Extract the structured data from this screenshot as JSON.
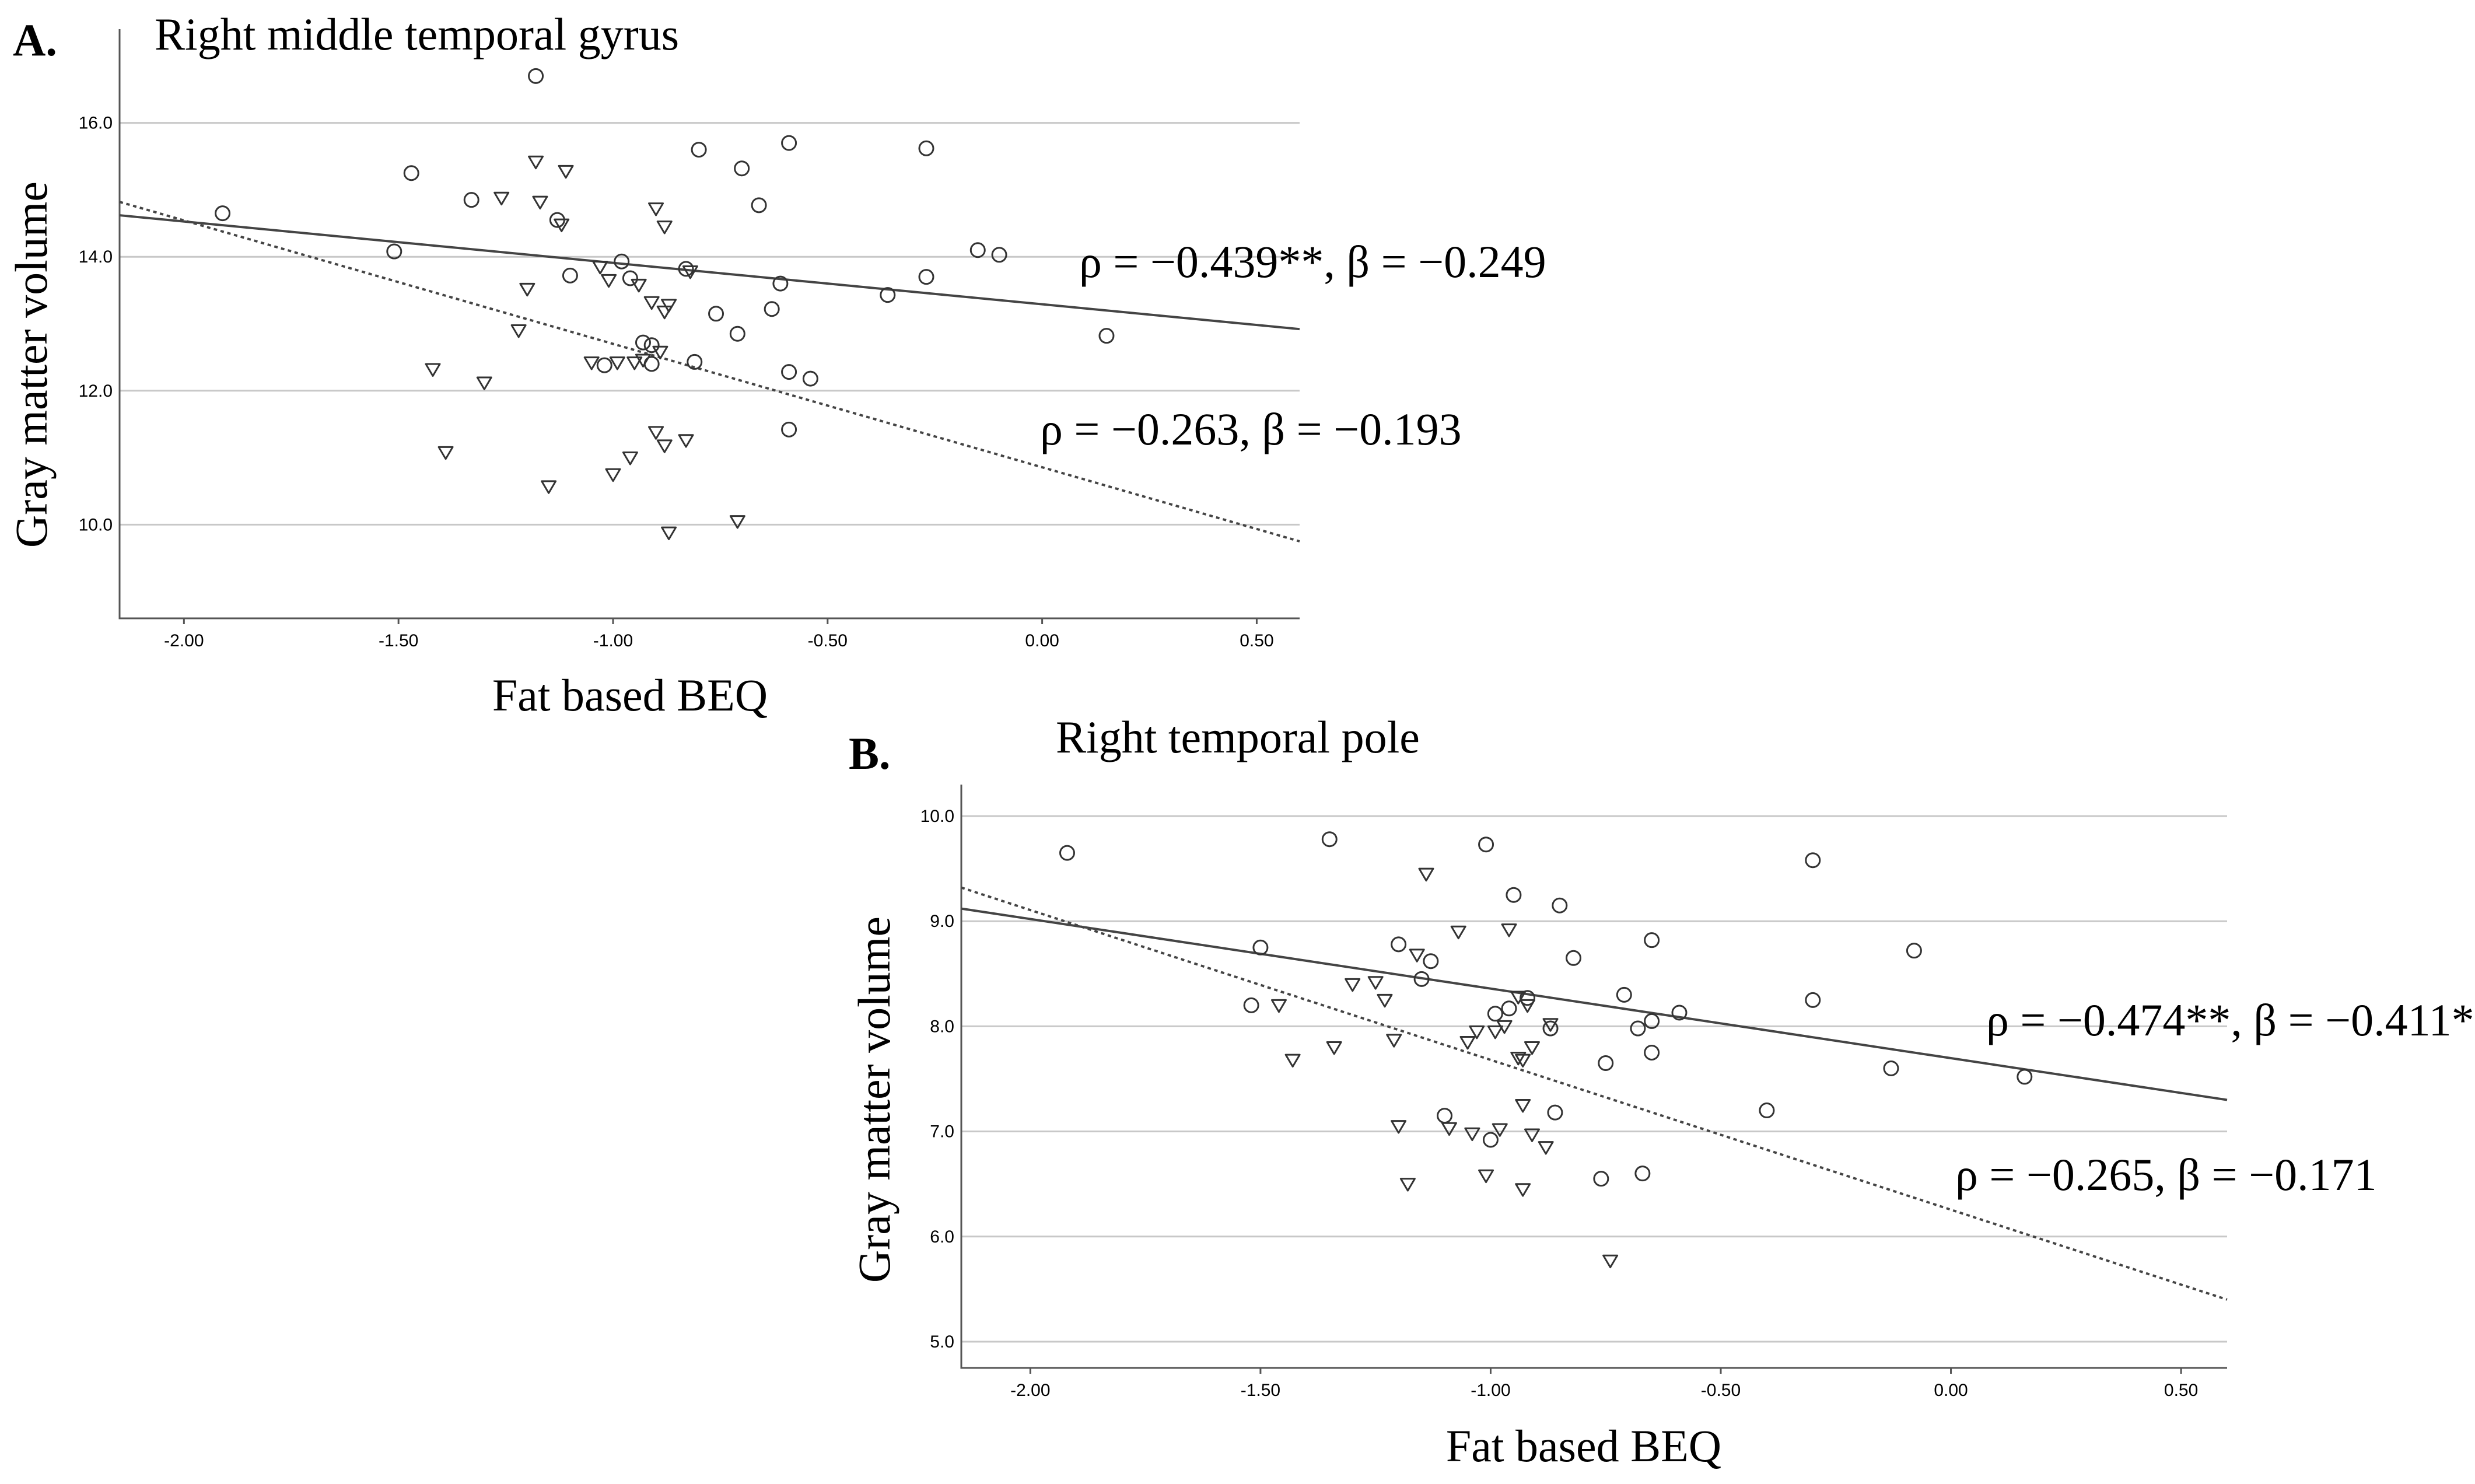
{
  "chart_data": [
    {
      "type": "scatter",
      "panel_label": "A.",
      "title": "Right middle temporal gyrus",
      "xlabel": "Fat based BEQ",
      "ylabel": "Gray matter volume",
      "xlim": [
        -2.15,
        0.6
      ],
      "ylim": [
        8.6,
        17.4
      ],
      "x_ticks": [
        -2.0,
        -1.5,
        -1.0,
        -0.5,
        0.0,
        0.5
      ],
      "x_tick_labels": [
        "-2.00",
        "-1.50",
        "-1.00",
        "-0.50",
        "0.00",
        "0.50"
      ],
      "y_ticks": [
        10.0,
        12.0,
        14.0,
        16.0
      ],
      "y_tick_labels": [
        "10.0",
        "12.0",
        "14.0",
        "16.0"
      ],
      "grid": "horizontal",
      "series": [
        {
          "name": "circles",
          "marker": "circle",
          "fit_line": {
            "style": "solid",
            "x": [
              -2.15,
              0.6
            ],
            "y": [
              14.62,
              12.92
            ]
          },
          "annotation": "ρ = −0.439**, β = −0.249",
          "points": [
            [
              -1.91,
              14.65
            ],
            [
              -1.47,
              15.25
            ],
            [
              -1.51,
              14.08
            ],
            [
              -1.33,
              14.85
            ],
            [
              -1.18,
              16.7
            ],
            [
              -1.13,
              14.55
            ],
            [
              -1.1,
              13.72
            ],
            [
              -1.02,
              12.38
            ],
            [
              -0.98,
              13.93
            ],
            [
              -0.96,
              13.68
            ],
            [
              -0.93,
              12.72
            ],
            [
              -0.91,
              12.68
            ],
            [
              -0.91,
              12.4
            ],
            [
              -0.83,
              13.82
            ],
            [
              -0.81,
              12.43
            ],
            [
              -0.8,
              15.6
            ],
            [
              -0.76,
              13.15
            ],
            [
              -0.71,
              12.85
            ],
            [
              -0.7,
              15.32
            ],
            [
              -0.66,
              14.77
            ],
            [
              -0.63,
              13.22
            ],
            [
              -0.61,
              13.6
            ],
            [
              -0.59,
              15.7
            ],
            [
              -0.59,
              12.28
            ],
            [
              -0.59,
              11.42
            ],
            [
              -0.54,
              12.18
            ],
            [
              -0.36,
              13.43
            ],
            [
              -0.27,
              15.62
            ],
            [
              -0.27,
              13.7
            ],
            [
              -0.15,
              14.1
            ],
            [
              -0.1,
              14.03
            ],
            [
              0.15,
              12.82
            ]
          ]
        },
        {
          "name": "triangles",
          "marker": "triangle",
          "fit_line": {
            "style": "dashed",
            "x": [
              -2.15,
              0.6
            ],
            "y": [
              14.82,
              9.75
            ]
          },
          "annotation": "ρ = −0.263, β = −0.193",
          "points": [
            [
              -1.42,
              12.32
            ],
            [
              -1.39,
              11.08
            ],
            [
              -1.3,
              12.12
            ],
            [
              -1.26,
              14.88
            ],
            [
              -1.22,
              12.9
            ],
            [
              -1.2,
              13.52
            ],
            [
              -1.18,
              15.42
            ],
            [
              -1.17,
              14.82
            ],
            [
              -1.15,
              10.57
            ],
            [
              -1.12,
              14.48
            ],
            [
              -1.11,
              15.28
            ],
            [
              -1.05,
              12.42
            ],
            [
              -1.03,
              13.85
            ],
            [
              -1.01,
              13.65
            ],
            [
              -1.0,
              10.75
            ],
            [
              -0.99,
              12.42
            ],
            [
              -0.96,
              11.0
            ],
            [
              -0.95,
              12.42
            ],
            [
              -0.94,
              13.58
            ],
            [
              -0.93,
              12.46
            ],
            [
              -0.91,
              13.32
            ],
            [
              -0.9,
              11.38
            ],
            [
              -0.9,
              14.72
            ],
            [
              -0.89,
              12.58
            ],
            [
              -0.88,
              13.18
            ],
            [
              -0.88,
              14.45
            ],
            [
              -0.88,
              11.18
            ],
            [
              -0.87,
              13.28
            ],
            [
              -0.87,
              9.88
            ],
            [
              -0.83,
              11.26
            ],
            [
              -0.82,
              13.78
            ],
            [
              -0.71,
              10.05
            ]
          ]
        }
      ]
    },
    {
      "type": "scatter",
      "panel_label": "B.",
      "title": "Right temporal pole",
      "xlabel": "Fat based BEQ",
      "ylabel": "Gray matter volume",
      "xlim": [
        -2.15,
        0.6
      ],
      "ylim": [
        4.75,
        10.3
      ],
      "x_ticks": [
        -2.0,
        -1.5,
        -1.0,
        -0.5,
        0.0,
        0.5
      ],
      "x_tick_labels": [
        "-2.00",
        "-1.50",
        "-1.00",
        "-0.50",
        "0.00",
        "0.50"
      ],
      "y_ticks": [
        5.0,
        6.0,
        7.0,
        8.0,
        9.0,
        10.0
      ],
      "y_tick_labels": [
        "5.0",
        "6.0",
        "7.0",
        "8.0",
        "9.0",
        "10.0"
      ],
      "grid": "horizontal",
      "series": [
        {
          "name": "circles",
          "marker": "circle",
          "fit_line": {
            "style": "solid",
            "x": [
              -2.15,
              0.6
            ],
            "y": [
              9.12,
              7.3
            ]
          },
          "annotation": "ρ = −0.474**, β = −0.411*",
          "points": [
            [
              -1.92,
              9.65
            ],
            [
              -1.52,
              8.2
            ],
            [
              -1.5,
              8.75
            ],
            [
              -1.35,
              9.78
            ],
            [
              -1.2,
              8.78
            ],
            [
              -1.15,
              8.45
            ],
            [
              -1.13,
              8.62
            ],
            [
              -1.1,
              7.15
            ],
            [
              -1.01,
              9.73
            ],
            [
              -1.0,
              6.92
            ],
            [
              -0.99,
              8.12
            ],
            [
              -0.96,
              8.17
            ],
            [
              -0.95,
              9.25
            ],
            [
              -0.92,
              8.27
            ],
            [
              -0.87,
              7.98
            ],
            [
              -0.86,
              7.18
            ],
            [
              -0.85,
              9.15
            ],
            [
              -0.82,
              8.65
            ],
            [
              -0.76,
              6.55
            ],
            [
              -0.75,
              7.65
            ],
            [
              -0.71,
              8.3
            ],
            [
              -0.68,
              7.98
            ],
            [
              -0.67,
              6.6
            ],
            [
              -0.65,
              8.05
            ],
            [
              -0.65,
              7.75
            ],
            [
              -0.65,
              8.82
            ],
            [
              -0.59,
              8.13
            ],
            [
              -0.4,
              7.2
            ],
            [
              -0.3,
              8.25
            ],
            [
              -0.3,
              9.58
            ],
            [
              -0.13,
              7.6
            ],
            [
              -0.08,
              8.72
            ],
            [
              0.16,
              7.52
            ]
          ]
        },
        {
          "name": "triangles",
          "marker": "triangle",
          "fit_line": {
            "style": "dashed",
            "x": [
              -2.15,
              0.6
            ],
            "y": [
              9.32,
              5.4
            ]
          },
          "annotation": "ρ = −0.265, β = −0.171",
          "points": [
            [
              -1.46,
              8.2
            ],
            [
              -1.43,
              7.68
            ],
            [
              -1.34,
              7.8
            ],
            [
              -1.3,
              8.4
            ],
            [
              -1.25,
              8.42
            ],
            [
              -1.23,
              8.25
            ],
            [
              -1.21,
              7.87
            ],
            [
              -1.2,
              7.05
            ],
            [
              -1.18,
              6.5
            ],
            [
              -1.16,
              8.68
            ],
            [
              -1.14,
              9.45
            ],
            [
              -1.09,
              7.03
            ],
            [
              -1.07,
              8.9
            ],
            [
              -1.05,
              7.85
            ],
            [
              -1.04,
              6.98
            ],
            [
              -1.03,
              7.95
            ],
            [
              -1.01,
              6.58
            ],
            [
              -0.99,
              7.95
            ],
            [
              -0.98,
              7.02
            ],
            [
              -0.97,
              8.0
            ],
            [
              -0.96,
              8.92
            ],
            [
              -0.94,
              7.7
            ],
            [
              -0.94,
              8.28
            ],
            [
              -0.93,
              7.68
            ],
            [
              -0.93,
              7.25
            ],
            [
              -0.93,
              6.45
            ],
            [
              -0.92,
              8.2
            ],
            [
              -0.91,
              7.8
            ],
            [
              -0.91,
              6.97
            ],
            [
              -0.88,
              6.85
            ],
            [
              -0.87,
              8.02
            ],
            [
              -0.74,
              5.77
            ]
          ]
        }
      ]
    }
  ]
}
